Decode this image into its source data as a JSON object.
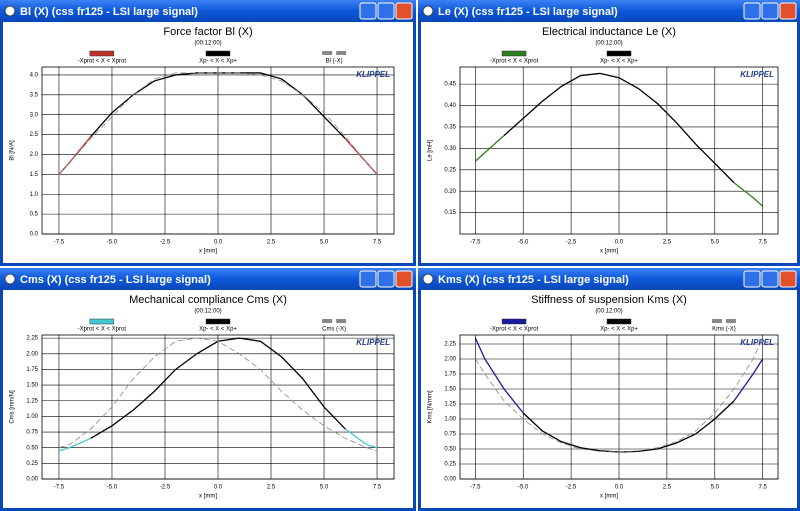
{
  "windows": [
    "Bl (X) (css fr125 - LSI large signal)",
    "Le (X) (css fr125 - LSI large signal)",
    "Cms (X) (css fr125 - LSI large signal)",
    "Kms (X) (css fr125 - LSI large signal)"
  ],
  "chart_data": [
    {
      "type": "line",
      "title": "Force factor Bl (X)",
      "subtitle": "(00:12:00)",
      "brand": "KLIPPEL",
      "xlabel": "x [mm]",
      "ylabel": "Bl [N/A]",
      "grid": true,
      "x": [
        -7.5,
        -7,
        -6,
        -5,
        -4,
        -3,
        -2,
        -1,
        0,
        1,
        2,
        3,
        4,
        5,
        6,
        7,
        7.5
      ],
      "xlim": [
        -8.3,
        8.3
      ],
      "xticks": [
        {
          "value": -7.5,
          "label": "-7.5"
        },
        {
          "value": -5,
          "label": "-5.0"
        },
        {
          "value": -2.5,
          "label": "-2.5"
        },
        {
          "value": 0,
          "label": "0.0"
        },
        2.5,
        {
          "value": 5,
          "label": "5.0"
        },
        7.5
      ],
      "ylim": [
        0,
        4.2
      ],
      "yticks": [
        {
          "value": 0,
          "label": "0.0"
        },
        0.5,
        {
          "value": 1,
          "label": "1.0"
        },
        1.5,
        {
          "value": 2,
          "label": "2.0"
        },
        2.5,
        {
          "value": 3,
          "label": "3.0"
        },
        3.5,
        {
          "value": 4,
          "label": "4.0"
        }
      ],
      "series": [
        {
          "name": "-Xprot < X < Xprot",
          "color": "#c0302a",
          "values": [
            1.5,
            1.8,
            2.45,
            null,
            null,
            null,
            null,
            null,
            null,
            null,
            null,
            null,
            null,
            null,
            2.4,
            1.8,
            1.5
          ]
        },
        {
          "name": "Xp- < X < Xp+",
          "color": "#000000",
          "values": [
            null,
            null,
            2.45,
            3.05,
            3.5,
            3.85,
            4.0,
            4.05,
            4.05,
            4.05,
            4.05,
            3.9,
            3.5,
            2.95,
            2.4,
            null,
            null
          ]
        },
        {
          "name": "Bl (-X)",
          "color": "#888888",
          "dashed": true,
          "values": [
            1.5,
            1.8,
            2.4,
            2.95,
            3.5,
            3.9,
            4.05,
            4.05,
            4.05,
            4.05,
            4.0,
            3.85,
            3.5,
            3.05,
            2.45,
            1.8,
            1.5
          ]
        }
      ]
    },
    {
      "type": "line",
      "title": "Electrical inductance Le (X)",
      "subtitle": "(00:12:00)",
      "brand": "KLIPPEL",
      "xlabel": "x [mm]",
      "ylabel": "Le [mH]",
      "grid": true,
      "x": [
        -7.5,
        -7,
        -6,
        -5,
        -4,
        -3,
        -2,
        -1,
        0,
        1,
        2,
        3,
        4,
        5,
        6,
        7,
        7.5
      ],
      "xlim": [
        -8.3,
        8.3
      ],
      "xticks": [
        {
          "value": -7.5,
          "label": "-7.5"
        },
        {
          "value": -5,
          "label": "-5.0"
        },
        {
          "value": -2.5,
          "label": "-2.5"
        },
        {
          "value": 0,
          "label": "0.0"
        },
        2.5,
        {
          "value": 5,
          "label": "5.0"
        },
        7.5
      ],
      "ylim": [
        0.1,
        0.49
      ],
      "yticks": [
        0.15,
        {
          "value": 0.2,
          "label": "0.20"
        },
        0.25,
        {
          "value": 0.3,
          "label": "0.30"
        },
        0.35,
        {
          "value": 0.4,
          "label": "0.40"
        },
        0.45
      ],
      "series": [
        {
          "name": "-Xprot < X < Xprot",
          "color": "#2e7d1e",
          "values": [
            0.27,
            0.29,
            0.33,
            null,
            null,
            null,
            null,
            null,
            null,
            null,
            null,
            null,
            null,
            null,
            0.22,
            0.185,
            0.165
          ]
        },
        {
          "name": "Xp- < X < Xp+",
          "color": "#000000",
          "values": [
            null,
            null,
            0.33,
            0.37,
            0.41,
            0.445,
            0.47,
            0.475,
            0.465,
            0.44,
            0.405,
            0.36,
            0.31,
            0.265,
            0.22,
            null,
            null
          ]
        }
      ]
    },
    {
      "type": "line",
      "title": "Mechanical compliance Cms (X)",
      "subtitle": "(00:12:00)",
      "brand": "KLIPPEL",
      "xlabel": "x [mm]",
      "ylabel": "Cms [mm/N]",
      "grid": true,
      "x": [
        -7.5,
        -7,
        -6,
        -5,
        -4,
        -3,
        -2,
        -1,
        0,
        1,
        2,
        3,
        4,
        5,
        6,
        7,
        7.5
      ],
      "xlim": [
        -8.3,
        8.3
      ],
      "xticks": [
        {
          "value": -7.5,
          "label": "-7.5"
        },
        {
          "value": -5,
          "label": "-5.0"
        },
        {
          "value": -2.5,
          "label": "-2.5"
        },
        {
          "value": 0,
          "label": "0.0"
        },
        2.5,
        {
          "value": 5,
          "label": "5.0"
        },
        7.5
      ],
      "ylim": [
        0,
        2.3
      ],
      "yticks": [
        {
          "value": 0,
          "label": "0.00"
        },
        0.25,
        {
          "value": 0.5,
          "label": "0.50"
        },
        0.75,
        {
          "value": 1,
          "label": "1.00"
        },
        1.25,
        {
          "value": 1.5,
          "label": "1.50"
        },
        1.75,
        {
          "value": 2,
          "label": "2.00"
        },
        2.25
      ],
      "series": [
        {
          "name": "-Xprot < X < Xprot",
          "color": "#40c8d0",
          "values": [
            0.45,
            0.5,
            0.65,
            null,
            null,
            null,
            null,
            null,
            null,
            null,
            null,
            null,
            null,
            null,
            0.8,
            0.55,
            0.5
          ]
        },
        {
          "name": "Xp- < X < Xp+",
          "color": "#000000",
          "values": [
            null,
            null,
            0.65,
            0.85,
            1.1,
            1.4,
            1.75,
            2.0,
            2.2,
            2.25,
            2.2,
            1.95,
            1.6,
            1.15,
            0.8,
            null,
            null
          ]
        },
        {
          "name": "Cms (-X)",
          "color": "#888888",
          "dashed": true,
          "values": [
            0.5,
            0.55,
            0.8,
            1.15,
            1.6,
            1.95,
            2.2,
            2.25,
            2.2,
            2.0,
            1.75,
            1.4,
            1.1,
            0.85,
            0.65,
            0.5,
            0.45
          ]
        }
      ]
    },
    {
      "type": "line",
      "title": "Stiffness of suspension Kms (X)",
      "subtitle": "(00:12:00)",
      "brand": "KLIPPEL",
      "xlabel": "x [mm]",
      "ylabel": "Kms [N/mm]",
      "grid": true,
      "x": [
        -7.5,
        -7,
        -6,
        -5,
        -4,
        -3,
        -2,
        -1,
        0,
        1,
        2,
        3,
        4,
        5,
        6,
        7,
        7.5
      ],
      "xlim": [
        -8.3,
        8.3
      ],
      "xticks": [
        {
          "value": -7.5,
          "label": "-7.5"
        },
        {
          "value": -5,
          "label": "-5.0"
        },
        {
          "value": -2.5,
          "label": "-2.5"
        },
        {
          "value": 0,
          "label": "0.0"
        },
        2.5,
        {
          "value": 5,
          "label": "5.0"
        },
        7.5
      ],
      "ylim": [
        0,
        2.4
      ],
      "yticks": [
        {
          "value": 0,
          "label": "0.00"
        },
        0.25,
        {
          "value": 0.5,
          "label": "0.50"
        },
        0.75,
        {
          "value": 1,
          "label": "1.00"
        },
        1.25,
        {
          "value": 1.5,
          "label": "1.50"
        },
        1.75,
        {
          "value": 2,
          "label": "2.00"
        },
        2.25
      ],
      "series": [
        {
          "name": "-Xprot < X < Xprot",
          "color": "#1a1aa0",
          "values": [
            2.35,
            2.0,
            1.5,
            1.1,
            null,
            null,
            null,
            null,
            null,
            null,
            null,
            null,
            null,
            null,
            1.3,
            1.75,
            2.0
          ]
        },
        {
          "name": "Xp- < X < Xp+",
          "color": "#000000",
          "values": [
            null,
            null,
            null,
            1.1,
            0.8,
            0.62,
            0.52,
            0.47,
            0.45,
            0.46,
            0.5,
            0.6,
            0.75,
            1.0,
            1.3,
            null,
            null
          ]
        },
        {
          "name": "Kms (-X)",
          "color": "#888888",
          "dashed": true,
          "values": [
            2.0,
            1.75,
            1.3,
            1.0,
            0.75,
            0.6,
            0.5,
            0.46,
            0.45,
            0.47,
            0.52,
            0.62,
            0.8,
            1.1,
            1.5,
            2.0,
            2.35
          ]
        }
      ]
    }
  ]
}
